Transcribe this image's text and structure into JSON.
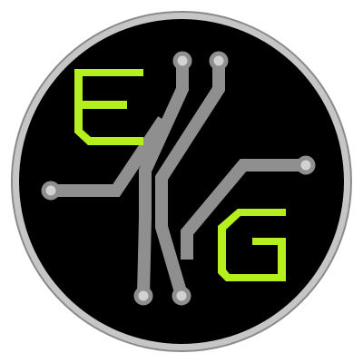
{
  "logo": {
    "letters": [
      "E",
      "G"
    ],
    "colors": {
      "background": "#000000",
      "ring": "#c6c6c6",
      "ring_edge": "#8a8a8a",
      "trace": "#8f8f8f",
      "pad_fill": "#d2d2d2",
      "letter": "#b5f01e"
    },
    "icon": "circuit-trace-icon"
  }
}
